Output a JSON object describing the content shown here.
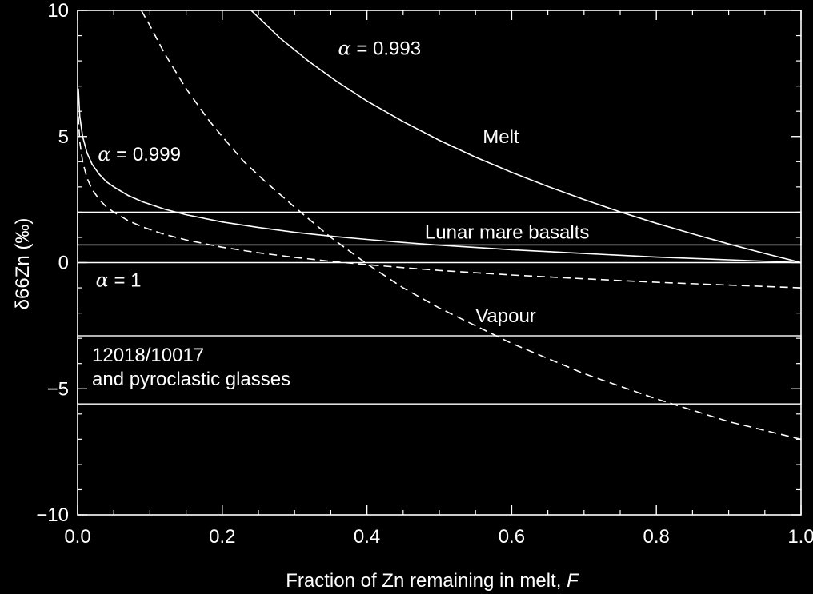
{
  "chart_data": {
    "type": "line",
    "xlabel_text": "Fraction of Zn remaining in melt, ",
    "xlabel_var": "F",
    "ylabel": "δ66Zn (‰)",
    "xlim": [
      0.0,
      1.0
    ],
    "ylim": [
      -10,
      10
    ],
    "x_ticks": [
      "0.0",
      "0.2",
      "0.4",
      "0.6",
      "0.8",
      "1.0"
    ],
    "y_ticks": [
      "−10",
      "−5",
      "0",
      "5",
      "10"
    ],
    "colors": {
      "background": "#000000",
      "foreground": "#ffffff"
    },
    "series": [
      {
        "alpha": 0.999,
        "phase": "Melt",
        "style": "solid",
        "x": [
          0.001,
          0.003,
          0.007,
          0.013,
          0.02,
          0.03,
          0.04,
          0.05,
          0.07,
          0.09,
          0.12,
          0.15,
          0.2,
          0.25,
          0.3,
          0.35,
          0.4,
          0.45,
          0.5,
          0.6,
          0.7,
          0.8,
          0.9,
          1.0
        ],
        "y": [
          6.9,
          5.8,
          5.0,
          4.35,
          3.9,
          3.5,
          3.2,
          3.0,
          2.66,
          2.41,
          2.12,
          1.9,
          1.61,
          1.39,
          1.2,
          1.05,
          0.92,
          0.8,
          0.69,
          0.51,
          0.36,
          0.22,
          0.11,
          0.0
        ]
      },
      {
        "alpha": 0.999,
        "phase": "Vapour",
        "style": "dashed",
        "x": [
          0.001,
          0.003,
          0.007,
          0.013,
          0.02,
          0.03,
          0.04,
          0.05,
          0.07,
          0.09,
          0.12,
          0.15,
          0.2,
          0.25,
          0.3,
          0.35,
          0.4,
          0.45,
          0.5,
          0.6,
          0.7,
          0.8,
          0.9,
          1.0
        ],
        "y": [
          5.8,
          4.8,
          4.0,
          3.35,
          2.9,
          2.5,
          2.2,
          2.0,
          1.66,
          1.41,
          1.12,
          0.9,
          0.61,
          0.39,
          0.21,
          0.05,
          -0.08,
          -0.2,
          -0.31,
          -0.49,
          -0.64,
          -0.78,
          -0.89,
          -1.0
        ]
      },
      {
        "alpha": 0.993,
        "phase": "Melt",
        "style": "solid",
        "x": [
          0.24,
          0.28,
          0.32,
          0.36,
          0.4,
          0.45,
          0.5,
          0.55,
          0.6,
          0.65,
          0.7,
          0.75,
          0.8,
          0.85,
          0.9,
          0.95,
          1.0
        ],
        "y": [
          10.0,
          8.9,
          7.97,
          7.15,
          6.41,
          5.59,
          4.85,
          4.18,
          3.58,
          3.02,
          2.5,
          2.01,
          1.56,
          1.14,
          0.74,
          0.36,
          0.0
        ]
      },
      {
        "alpha": 0.993,
        "phase": "Vapour",
        "style": "dashed",
        "x": [
          0.088,
          0.1,
          0.12,
          0.15,
          0.18,
          0.2,
          0.23,
          0.26,
          0.3,
          0.35,
          0.4,
          0.45,
          0.5,
          0.55,
          0.6,
          0.7,
          0.8,
          0.9,
          1.0
        ],
        "y": [
          10.0,
          9.4,
          8.3,
          6.9,
          5.7,
          5.0,
          4.0,
          3.2,
          2.2,
          1.0,
          -0.05,
          -1.0,
          -1.8,
          -2.5,
          -3.2,
          -4.4,
          -5.4,
          -6.3,
          -7.0
        ]
      }
    ],
    "bands": [
      {
        "label": "Lunar mare basalts",
        "y_range": [
          0.7,
          2.0
        ]
      },
      {
        "label_lines": [
          "12018/10017",
          "and pyroclastic glasses"
        ],
        "y_range": [
          -5.6,
          -2.9
        ]
      }
    ],
    "extra_hlines": [
      0.0
    ],
    "annotations": [
      {
        "alpha_symbol": "α",
        "alpha_text": " = 0.993",
        "x": 0.36,
        "y": 8.5
      },
      {
        "alpha_symbol": "α",
        "alpha_text": " = 0.999",
        "x": 0.028,
        "y": 4.3
      },
      {
        "alpha_symbol": "α",
        "alpha_text": " = 1",
        "x": 0.025,
        "y": -0.7
      },
      {
        "text": "Melt",
        "x": 0.56,
        "y": 5.0
      },
      {
        "text": "Vapour",
        "x": 0.55,
        "y": -2.1
      },
      {
        "text": "Lunar mare basalts",
        "x": 0.48,
        "y": 1.2
      }
    ]
  }
}
